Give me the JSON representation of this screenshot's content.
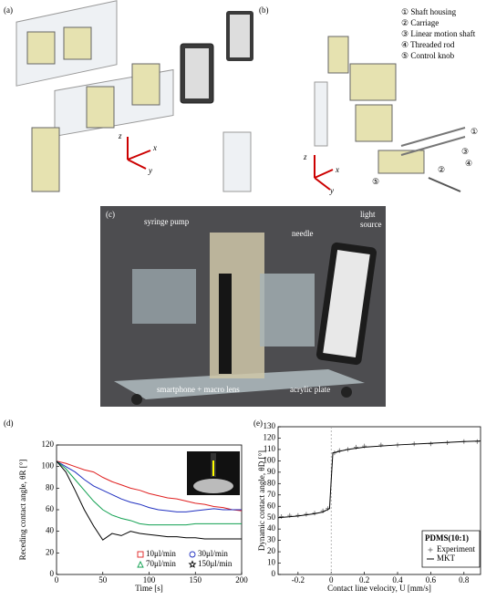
{
  "figure": {
    "panel_a": {
      "label": "(a)",
      "axes": [
        "z",
        "x",
        "y"
      ]
    },
    "panel_b": {
      "label": "(b)",
      "parts": [
        "① Shaft housing",
        "② Carriage",
        "③ Linear motion shaft",
        "④ Threaded rod",
        "⑤ Control knob"
      ],
      "axes": [
        "z",
        "x",
        "y"
      ],
      "callout_numbers": [
        "①",
        "②",
        "③",
        "④",
        "⑤"
      ]
    },
    "panel_c": {
      "label": "(c)",
      "callouts": [
        "syringe pump",
        "needle",
        "light source",
        "smartphone + macro lens",
        "acrylic plate"
      ]
    },
    "panel_d": {
      "label": "(d)"
    },
    "panel_e": {
      "label": "(e)"
    }
  },
  "chart_data": [
    {
      "type": "line",
      "xlabel": "Time [s]",
      "ylabel": "Receding contact angle, θR [°]",
      "xlim": [
        0,
        200
      ],
      "ylim": [
        0,
        120
      ],
      "xticks": [
        0,
        50,
        100,
        150,
        200
      ],
      "yticks": [
        0,
        20,
        40,
        60,
        80,
        100,
        120
      ],
      "x": [
        0,
        10,
        20,
        30,
        40,
        50,
        60,
        70,
        80,
        90,
        100,
        110,
        120,
        130,
        140,
        150,
        160,
        170,
        180,
        190,
        200
      ],
      "series": [
        {
          "name": "10μl/min",
          "color": "#e02020",
          "marker": "square",
          "values": [
            105,
            103,
            100,
            97,
            95,
            90,
            86,
            83,
            80,
            78,
            75,
            73,
            71,
            70,
            68,
            66,
            65,
            63,
            62,
            60,
            59
          ]
        },
        {
          "name": "30μl/min",
          "color": "#2030c0",
          "marker": "circle",
          "values": [
            105,
            100,
            95,
            88,
            82,
            78,
            74,
            70,
            67,
            65,
            62,
            60,
            59,
            58,
            58,
            59,
            60,
            61,
            60,
            60,
            60
          ]
        },
        {
          "name": "70μl/min",
          "color": "#10a050",
          "marker": "triangle",
          "values": [
            105,
            98,
            88,
            78,
            68,
            60,
            55,
            52,
            50,
            47,
            46,
            46,
            46,
            46,
            46,
            47,
            47,
            47,
            47,
            47,
            47
          ]
        },
        {
          "name": "150μl/min",
          "color": "#000000",
          "marker": "star",
          "values": [
            105,
            95,
            78,
            60,
            45,
            32,
            38,
            36,
            40,
            38,
            37,
            36,
            35,
            35,
            34,
            34,
            33,
            33,
            33,
            33,
            33
          ]
        }
      ]
    },
    {
      "type": "line",
      "xlabel": "Contact line velocity, U [mm/s]",
      "ylabel": "Dynamic contact angle, θD [°]",
      "xlim": [
        -0.32,
        0.9
      ],
      "ylim": [
        0,
        130
      ],
      "xticks": [
        -0.2,
        0,
        0.2,
        0.4,
        0.6,
        0.8
      ],
      "yticks": [
        0,
        10,
        20,
        30,
        40,
        50,
        60,
        70,
        80,
        90,
        100,
        110,
        120,
        130
      ],
      "reference_line_x": 0,
      "legend_title": "PDMS(10:1)",
      "series": [
        {
          "name": "Experiment",
          "color": "#777777",
          "marker": "plus",
          "line": false,
          "x": [
            -0.3,
            -0.25,
            -0.2,
            -0.15,
            -0.1,
            -0.05,
            -0.02,
            0.02,
            0.05,
            0.1,
            0.15,
            0.2,
            0.3,
            0.4,
            0.5,
            0.6,
            0.7,
            0.8,
            0.88
          ],
          "values": [
            51,
            52,
            52,
            53,
            54,
            56,
            58,
            107,
            109,
            110,
            112,
            113,
            114,
            114,
            115,
            115,
            116,
            117,
            117
          ]
        },
        {
          "name": "MKT",
          "color": "#000000",
          "marker": "none",
          "line": true,
          "x": [
            -0.32,
            -0.2,
            -0.1,
            -0.05,
            -0.01,
            0,
            0.01,
            0.1,
            0.2,
            0.4,
            0.6,
            0.8,
            0.9
          ],
          "values": [
            50,
            51.5,
            53.5,
            55,
            58,
            83,
            107,
            110,
            112,
            114,
            115.5,
            117,
            117.5
          ]
        }
      ]
    }
  ]
}
